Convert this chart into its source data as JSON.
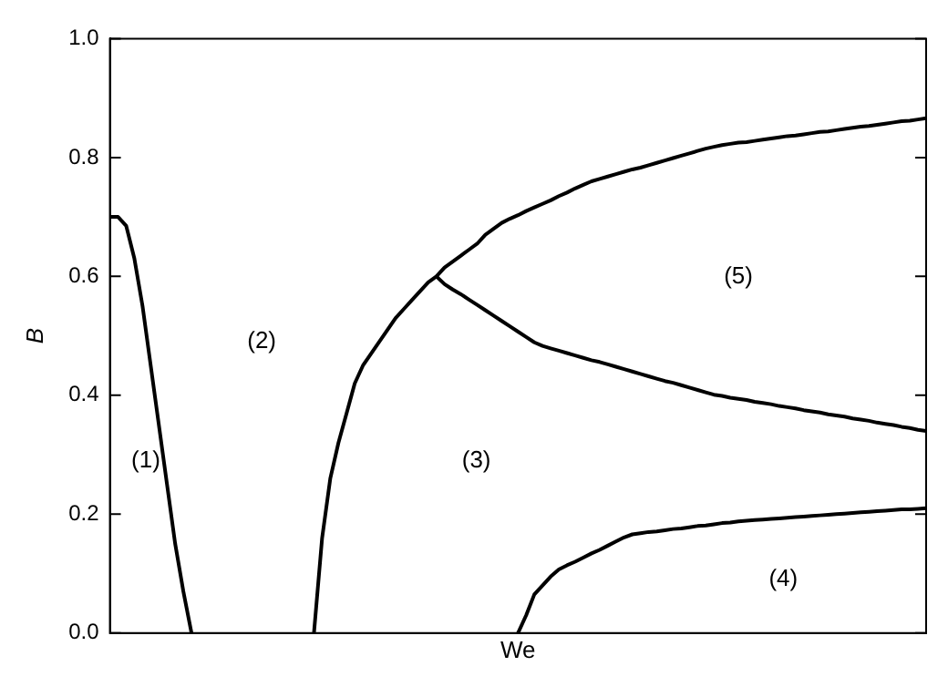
{
  "chart_data": {
    "type": "line",
    "xlabel": "We",
    "ylabel": "B",
    "ylim": [
      0,
      1
    ],
    "categories": [
      null,
      null,
      null,
      null,
      null,
      null,
      null,
      null,
      null,
      null,
      null,
      null,
      null,
      null,
      null,
      null,
      null,
      null,
      null,
      null,
      null,
      null,
      null,
      null,
      null,
      null,
      null,
      null,
      null,
      null,
      null,
      null,
      null,
      null,
      null,
      null,
      null,
      null,
      null,
      null,
      null,
      null,
      null,
      null,
      null,
      null,
      null,
      null,
      null,
      null,
      null,
      null,
      null,
      null,
      null,
      null,
      null,
      null,
      null,
      null,
      null,
      null,
      null,
      null,
      null,
      null,
      null,
      null,
      null,
      null,
      null,
      null,
      null,
      null,
      null,
      null,
      null,
      null,
      null,
      null,
      null,
      null,
      null,
      null,
      null,
      null,
      null,
      null,
      null,
      null,
      null,
      null,
      null,
      null,
      null,
      null,
      null,
      null,
      null,
      null,
      null
    ],
    "yticks": [
      {
        "value": 0,
        "label": "0.0"
      },
      0.2,
      0.4,
      0.6,
      0.8,
      {
        "value": 1,
        "label": "1.0"
      }
    ],
    "tick_labels": "y",
    "grid": false,
    "legend": false,
    "marker": "none",
    "line_style": "solid",
    "series": [
      {
        "color": "#000000",
        "values": [
          0.7,
          0.7,
          0.685,
          0.63,
          0.55,
          0.45,
          0.35,
          0.25,
          0.15,
          0.07,
          0,
          null,
          null,
          null,
          null,
          null,
          null,
          null,
          null,
          null,
          null,
          null,
          null,
          null,
          null,
          null,
          null,
          null,
          null,
          null,
          null,
          null,
          null,
          null,
          null,
          null,
          null,
          null,
          null,
          null,
          null,
          null,
          null,
          null,
          null,
          null,
          null,
          null,
          null,
          null,
          null,
          null,
          null,
          null,
          null,
          null,
          null,
          null,
          null,
          null,
          null,
          null,
          null,
          null,
          null,
          null,
          null,
          null,
          null,
          null,
          null,
          null,
          null,
          null,
          null,
          null,
          null,
          null,
          null,
          null,
          null,
          null,
          null,
          null,
          null,
          null,
          null,
          null,
          null,
          null,
          null,
          null,
          null,
          null,
          null,
          null,
          null,
          null,
          null,
          null,
          null
        ]
      },
      {
        "color": "#000000",
        "values": [
          null,
          null,
          null,
          null,
          null,
          null,
          null,
          null,
          null,
          null,
          null,
          null,
          null,
          null,
          null,
          null,
          null,
          null,
          null,
          null,
          null,
          null,
          null,
          null,
          null,
          0,
          0.16,
          0.26,
          0.32,
          0.37,
          0.42,
          0.45,
          0.47,
          0.49,
          0.51,
          0.53,
          0.545,
          0.56,
          0.575,
          0.59,
          0.6,
          0.615,
          0.625,
          0.635,
          0.645,
          0.655,
          0.67,
          0.68,
          0.69,
          0.697,
          0.703,
          0.71,
          0.716,
          0.722,
          0.728,
          0.735,
          0.741,
          0.748,
          0.754,
          0.76,
          0.764,
          0.768,
          0.772,
          0.776,
          0.78,
          0.783,
          0.787,
          0.791,
          0.795,
          0.799,
          0.803,
          0.807,
          0.811,
          0.815,
          0.818,
          0.821,
          0.823,
          0.825,
          0.826,
          0.828,
          0.83,
          0.832,
          0.834,
          0.836,
          0.837,
          0.839,
          0.841,
          0.843,
          0.844,
          0.846,
          0.848,
          0.85,
          0.852,
          0.853,
          0.855,
          0.857,
          0.859,
          0.861,
          0.862,
          0.864,
          0.866
        ]
      },
      {
        "color": "#000000",
        "values": [
          null,
          null,
          null,
          null,
          null,
          null,
          null,
          null,
          null,
          null,
          null,
          null,
          null,
          null,
          null,
          null,
          null,
          null,
          null,
          null,
          null,
          null,
          null,
          null,
          null,
          null,
          null,
          null,
          null,
          null,
          null,
          null,
          null,
          null,
          null,
          null,
          null,
          null,
          null,
          null,
          0.6,
          0.587,
          0.578,
          0.57,
          0.561,
          0.552,
          0.543,
          0.534,
          0.525,
          0.516,
          0.507,
          0.498,
          0.489,
          0.483,
          0.479,
          0.475,
          0.471,
          0.467,
          0.463,
          0.459,
          0.456,
          0.452,
          0.448,
          0.444,
          0.44,
          0.436,
          0.432,
          0.428,
          0.424,
          0.421,
          0.417,
          0.413,
          0.409,
          0.405,
          0.401,
          0.399,
          0.396,
          0.394,
          0.392,
          0.389,
          0.387,
          0.385,
          0.382,
          0.38,
          0.378,
          0.375,
          0.373,
          0.371,
          0.368,
          0.366,
          0.364,
          0.361,
          0.359,
          0.357,
          0.354,
          0.352,
          0.35,
          0.347,
          0.345,
          0.342,
          0.34
        ]
      },
      {
        "color": "#000000",
        "values": [
          null,
          null,
          null,
          null,
          null,
          null,
          null,
          null,
          null,
          null,
          null,
          null,
          null,
          null,
          null,
          null,
          null,
          null,
          null,
          null,
          null,
          null,
          null,
          null,
          null,
          null,
          null,
          null,
          null,
          null,
          null,
          null,
          null,
          null,
          null,
          null,
          null,
          null,
          null,
          null,
          null,
          null,
          null,
          null,
          null,
          null,
          null,
          null,
          null,
          null,
          0,
          0.03,
          0.065,
          0.08,
          0.095,
          0.107,
          0.114,
          0.12,
          0.127,
          0.134,
          0.14,
          0.147,
          0.154,
          0.161,
          0.166,
          0.168,
          0.17,
          0.171,
          0.173,
          0.175,
          0.176,
          0.178,
          0.18,
          0.181,
          0.183,
          0.185,
          0.186,
          0.188,
          0.189,
          0.19,
          0.191,
          0.192,
          0.193,
          0.194,
          0.195,
          0.196,
          0.197,
          0.198,
          0.199,
          0.2,
          0.201,
          0.202,
          0.203,
          0.204,
          0.205,
          0.206,
          0.207,
          0.208,
          0.208,
          0.209,
          0.21
        ]
      }
    ],
    "annotations": [
      "(1)",
      "(2)",
      "(3)",
      "(4)",
      "(5)"
    ]
  }
}
